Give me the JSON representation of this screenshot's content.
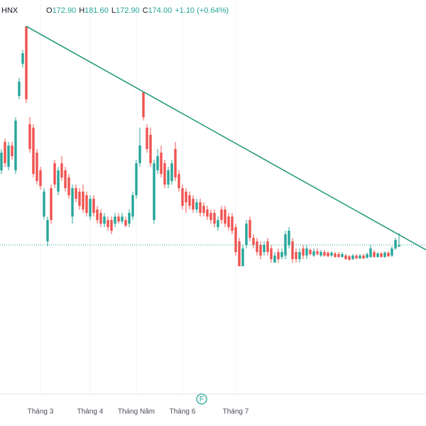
{
  "chart_data": {
    "type": "candlestick",
    "symbol": "HNX",
    "ohlc_header": [
      {
        "label": "O",
        "value": "172.90"
      },
      {
        "label": "H",
        "value": "181.60"
      },
      {
        "label": "L",
        "value": "172.90"
      },
      {
        "label": "C",
        "value": "174.00"
      }
    ],
    "change": "+1.10 (+0.64%)",
    "up_color": "#26a69a",
    "down_color": "#ef5350",
    "trend_color": "#2a9d7f",
    "xlim": [
      -0.4,
      119.6
    ],
    "ylim": [
      79.5,
      329.25
    ],
    "grid": true,
    "categories": [
      null,
      null,
      null,
      null,
      null,
      null,
      null,
      null,
      null,
      null,
      null,
      "Tháng 3",
      null,
      null,
      null,
      null,
      null,
      null,
      null,
      null,
      null,
      null,
      null,
      null,
      null,
      "Tháng 4",
      null,
      null,
      null,
      null,
      null,
      null,
      null,
      null,
      null,
      null,
      null,
      null,
      "Tháng Năm",
      null,
      null,
      null,
      null,
      null,
      null,
      null,
      null,
      null,
      null,
      null,
      null,
      "Tháng 6",
      null,
      null,
      null,
      null,
      null,
      null,
      null,
      null,
      null,
      null,
      null,
      null,
      null,
      null,
      "Tháng 7",
      null,
      null,
      null,
      null,
      null,
      null,
      null,
      null,
      null,
      null,
      null,
      null,
      null,
      null,
      null,
      null,
      null,
      null,
      null,
      null,
      null,
      null,
      null,
      null,
      null,
      null,
      null,
      null,
      null,
      null,
      null,
      null,
      null,
      null,
      null,
      null,
      null,
      null,
      null,
      null,
      null,
      null
    ],
    "candles": [
      [
        221.3,
        234.8,
        219,
        232.5
      ],
      [
        239.3,
        241.5,
        223.5,
        225.8
      ],
      [
        223.5,
        239.3,
        221.3,
        237
      ],
      [
        237,
        239.3,
        228,
        230.3
      ],
      [
        221.3,
        255,
        219,
        252.8
      ],
      [
        268.5,
        279.8,
        266.3,
        277.5
      ],
      [
        288.8,
        297.7,
        286.5,
        295.5
      ],
      [
        312.6,
        312.6,
        264,
        266.3
      ],
      [
        250.5,
        255,
        232.5,
        234.8
      ],
      [
        248.3,
        250.5,
        216.8,
        219
      ],
      [
        232.5,
        234.8,
        212.3,
        214.5
      ],
      [
        221.3,
        223.5,
        209,
        211.4
      ],
      [
        192,
        210,
        190,
        207.8
      ],
      [
        176.3,
        192,
        173.1,
        189.8
      ],
      [
        210,
        212.3,
        187.5,
        189.8
      ],
      [
        225.8,
        228,
        210,
        212.3
      ],
      [
        207.8,
        223.5,
        205.5,
        221.3
      ],
      [
        225.8,
        230.3,
        214.5,
        216.8
      ],
      [
        221.3,
        223.5,
        207.8,
        210
      ],
      [
        216.8,
        219,
        203.3,
        205.5
      ],
      [
        192,
        212.3,
        187.5,
        210
      ],
      [
        210,
        212.3,
        201,
        203.3
      ],
      [
        207.8,
        210,
        196.5,
        198.8
      ],
      [
        207.8,
        212.3,
        194.3,
        196.5
      ],
      [
        205.5,
        207.8,
        192,
        194.3
      ],
      [
        192,
        205.5,
        189.8,
        203.3
      ],
      [
        203.3,
        205.5,
        192,
        194.3
      ],
      [
        196.5,
        198.8,
        187.5,
        189.8
      ],
      [
        194.3,
        196.5,
        185.3,
        187.5
      ],
      [
        187.5,
        194.3,
        185.3,
        192
      ],
      [
        189.8,
        192,
        183,
        185.3
      ],
      [
        189.8,
        192,
        180.8,
        183
      ],
      [
        187.5,
        194.3,
        185.3,
        192
      ],
      [
        192,
        194.3,
        187.5,
        188.9
      ],
      [
        188.9,
        194.3,
        187.5,
        192
      ],
      [
        189.8,
        192,
        185.3,
        186.2
      ],
      [
        187.5,
        196.5,
        185.3,
        194.3
      ],
      [
        192,
        207.8,
        189.8,
        205.5
      ],
      [
        205.5,
        228,
        203.3,
        225.8
      ],
      [
        225.8,
        248.3,
        223.5,
        237
      ],
      [
        270.8,
        270.8,
        252.8,
        255
      ],
      [
        248.3,
        250.5,
        232.5,
        234.8
      ],
      [
        243.8,
        248.3,
        223.5,
        225.8
      ],
      [
        189.8,
        228,
        187.5,
        225.8
      ],
      [
        221.3,
        234.8,
        219,
        230.3
      ],
      [
        232.5,
        237,
        216.8,
        219
      ],
      [
        225.8,
        228,
        210,
        212.3
      ],
      [
        212.3,
        223.5,
        210,
        221.3
      ],
      [
        214.5,
        228,
        212.3,
        225.8
      ],
      [
        234.8,
        239.3,
        214.5,
        216.8
      ],
      [
        219,
        221.3,
        207.8,
        210
      ],
      [
        210,
        212.3,
        196.5,
        198.8
      ],
      [
        207.8,
        210,
        194.3,
        201
      ],
      [
        205.5,
        207.8,
        196.5,
        198.8
      ],
      [
        203.3,
        205.5,
        194.3,
        196.5
      ],
      [
        196.5,
        203.3,
        194.3,
        201
      ],
      [
        201,
        203.3,
        192,
        194.3
      ],
      [
        198.8,
        201,
        192,
        194.3
      ],
      [
        196.5,
        198.8,
        189.8,
        192
      ],
      [
        194.3,
        196.5,
        187.5,
        189.8
      ],
      [
        194.3,
        196.5,
        185.3,
        187.5
      ],
      [
        185.3,
        192,
        183,
        189.8
      ],
      [
        196.5,
        198.8,
        187.5,
        189.8
      ],
      [
        196.5,
        198.8,
        185.3,
        187.5
      ],
      [
        192,
        194.3,
        183,
        185.3
      ],
      [
        192,
        194.3,
        180.8,
        183
      ],
      [
        185.3,
        187.5,
        167.3,
        169.5
      ],
      [
        176.3,
        178.5,
        160.5,
        160.5
      ],
      [
        160.5,
        174,
        160.5,
        171.8
      ],
      [
        174,
        189.8,
        171.8,
        187.5
      ],
      [
        189.8,
        192,
        176.3,
        178.5
      ],
      [
        178.5,
        180.8,
        171.8,
        174
      ],
      [
        176.3,
        178.5,
        167.3,
        169.5
      ],
      [
        174,
        176.3,
        165,
        167.3
      ],
      [
        169.5,
        176.3,
        167.3,
        174
      ],
      [
        176.3,
        178.5,
        167.3,
        169.5
      ],
      [
        171.8,
        174,
        162.8,
        165
      ],
      [
        162.8,
        169.5,
        162.8,
        167.3
      ],
      [
        169.5,
        171.8,
        162.8,
        165
      ],
      [
        166.4,
        171.8,
        165,
        169.5
      ],
      [
        167.3,
        183,
        165,
        180.8
      ],
      [
        174,
        185.3,
        171.8,
        183
      ],
      [
        176.3,
        178.5,
        162.8,
        165
      ],
      [
        169.5,
        171.8,
        162.8,
        165
      ],
      [
        165,
        171.8,
        162.8,
        169.5
      ],
      [
        171.8,
        174,
        165,
        167.3
      ],
      [
        167.3,
        174,
        165,
        171.8
      ],
      [
        170.9,
        171.8,
        167.3,
        168.2
      ],
      [
        167.3,
        171.8,
        166.4,
        170
      ],
      [
        170,
        171.8,
        167.3,
        168.2
      ],
      [
        167.3,
        170.9,
        166.4,
        169.5
      ],
      [
        169.5,
        170.9,
        166.4,
        167.3
      ],
      [
        169.1,
        170,
        166.4,
        166.8
      ],
      [
        167.3,
        170,
        166.4,
        169.1
      ],
      [
        168.6,
        169.5,
        165.9,
        166.4
      ],
      [
        168.2,
        169.5,
        165.9,
        166.4
      ],
      [
        166.4,
        169.5,
        165.9,
        168.2
      ],
      [
        167.3,
        168.2,
        164.6,
        165
      ],
      [
        166.8,
        167.7,
        164.1,
        164.6
      ],
      [
        165,
        168.2,
        164.6,
        167.3
      ],
      [
        167.3,
        168.2,
        165,
        165.5
      ],
      [
        165.5,
        168.2,
        165,
        167.3
      ],
      [
        167.3,
        168.2,
        165,
        165.5
      ],
      [
        165.9,
        169.1,
        165.5,
        168.2
      ],
      [
        166.4,
        174,
        165.9,
        171.8
      ],
      [
        169.5,
        170.9,
        165.9,
        166.4
      ],
      [
        166.4,
        169.5,
        165.9,
        168.6
      ],
      [
        168.6,
        169.5,
        165.9,
        166.4
      ],
      [
        166.4,
        170,
        165.9,
        169.1
      ],
      [
        169.1,
        170,
        166.4,
        166.8
      ],
      [
        167.3,
        173.1,
        166.4,
        171.8
      ],
      [
        171.8,
        178.5,
        170.9,
        177.2
      ],
      [
        172.9,
        181.6,
        172.9,
        174.0
      ]
    ],
    "trendline": {
      "x": [
        7,
        119.6
      ],
      "y": [
        312.6,
        170.9
      ]
    }
  }
}
